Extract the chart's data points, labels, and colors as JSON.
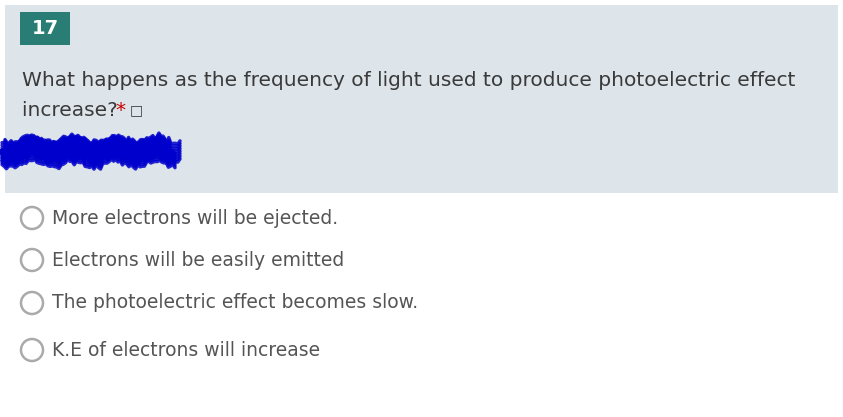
{
  "question_number": "17",
  "question_number_bg": "#2a7d74",
  "question_number_color": "#ffffff",
  "question_text_line1": "What happens as the frequency of light used to produce photoelectric effect",
  "question_text_line2_main": "increase? ",
  "asterisk_text": "*",
  "asterisk_color": "#cc0000",
  "icon_text": "  □)",
  "question_bg": "#dde4ea",
  "question_text_color": "#3a3a3a",
  "options": [
    "More electrons will be ejected.",
    "Electrons will be easily emitted",
    "The photoelectric effect becomes slow.",
    "K.E of electrons will increase"
  ],
  "option_text_color": "#555555",
  "background_color": "#ffffff",
  "radio_circle_color": "#aaaaaa",
  "scribble_color": "#0000cc",
  "font_size_question": 14.5,
  "font_size_options": 13.5,
  "font_size_number": 14
}
